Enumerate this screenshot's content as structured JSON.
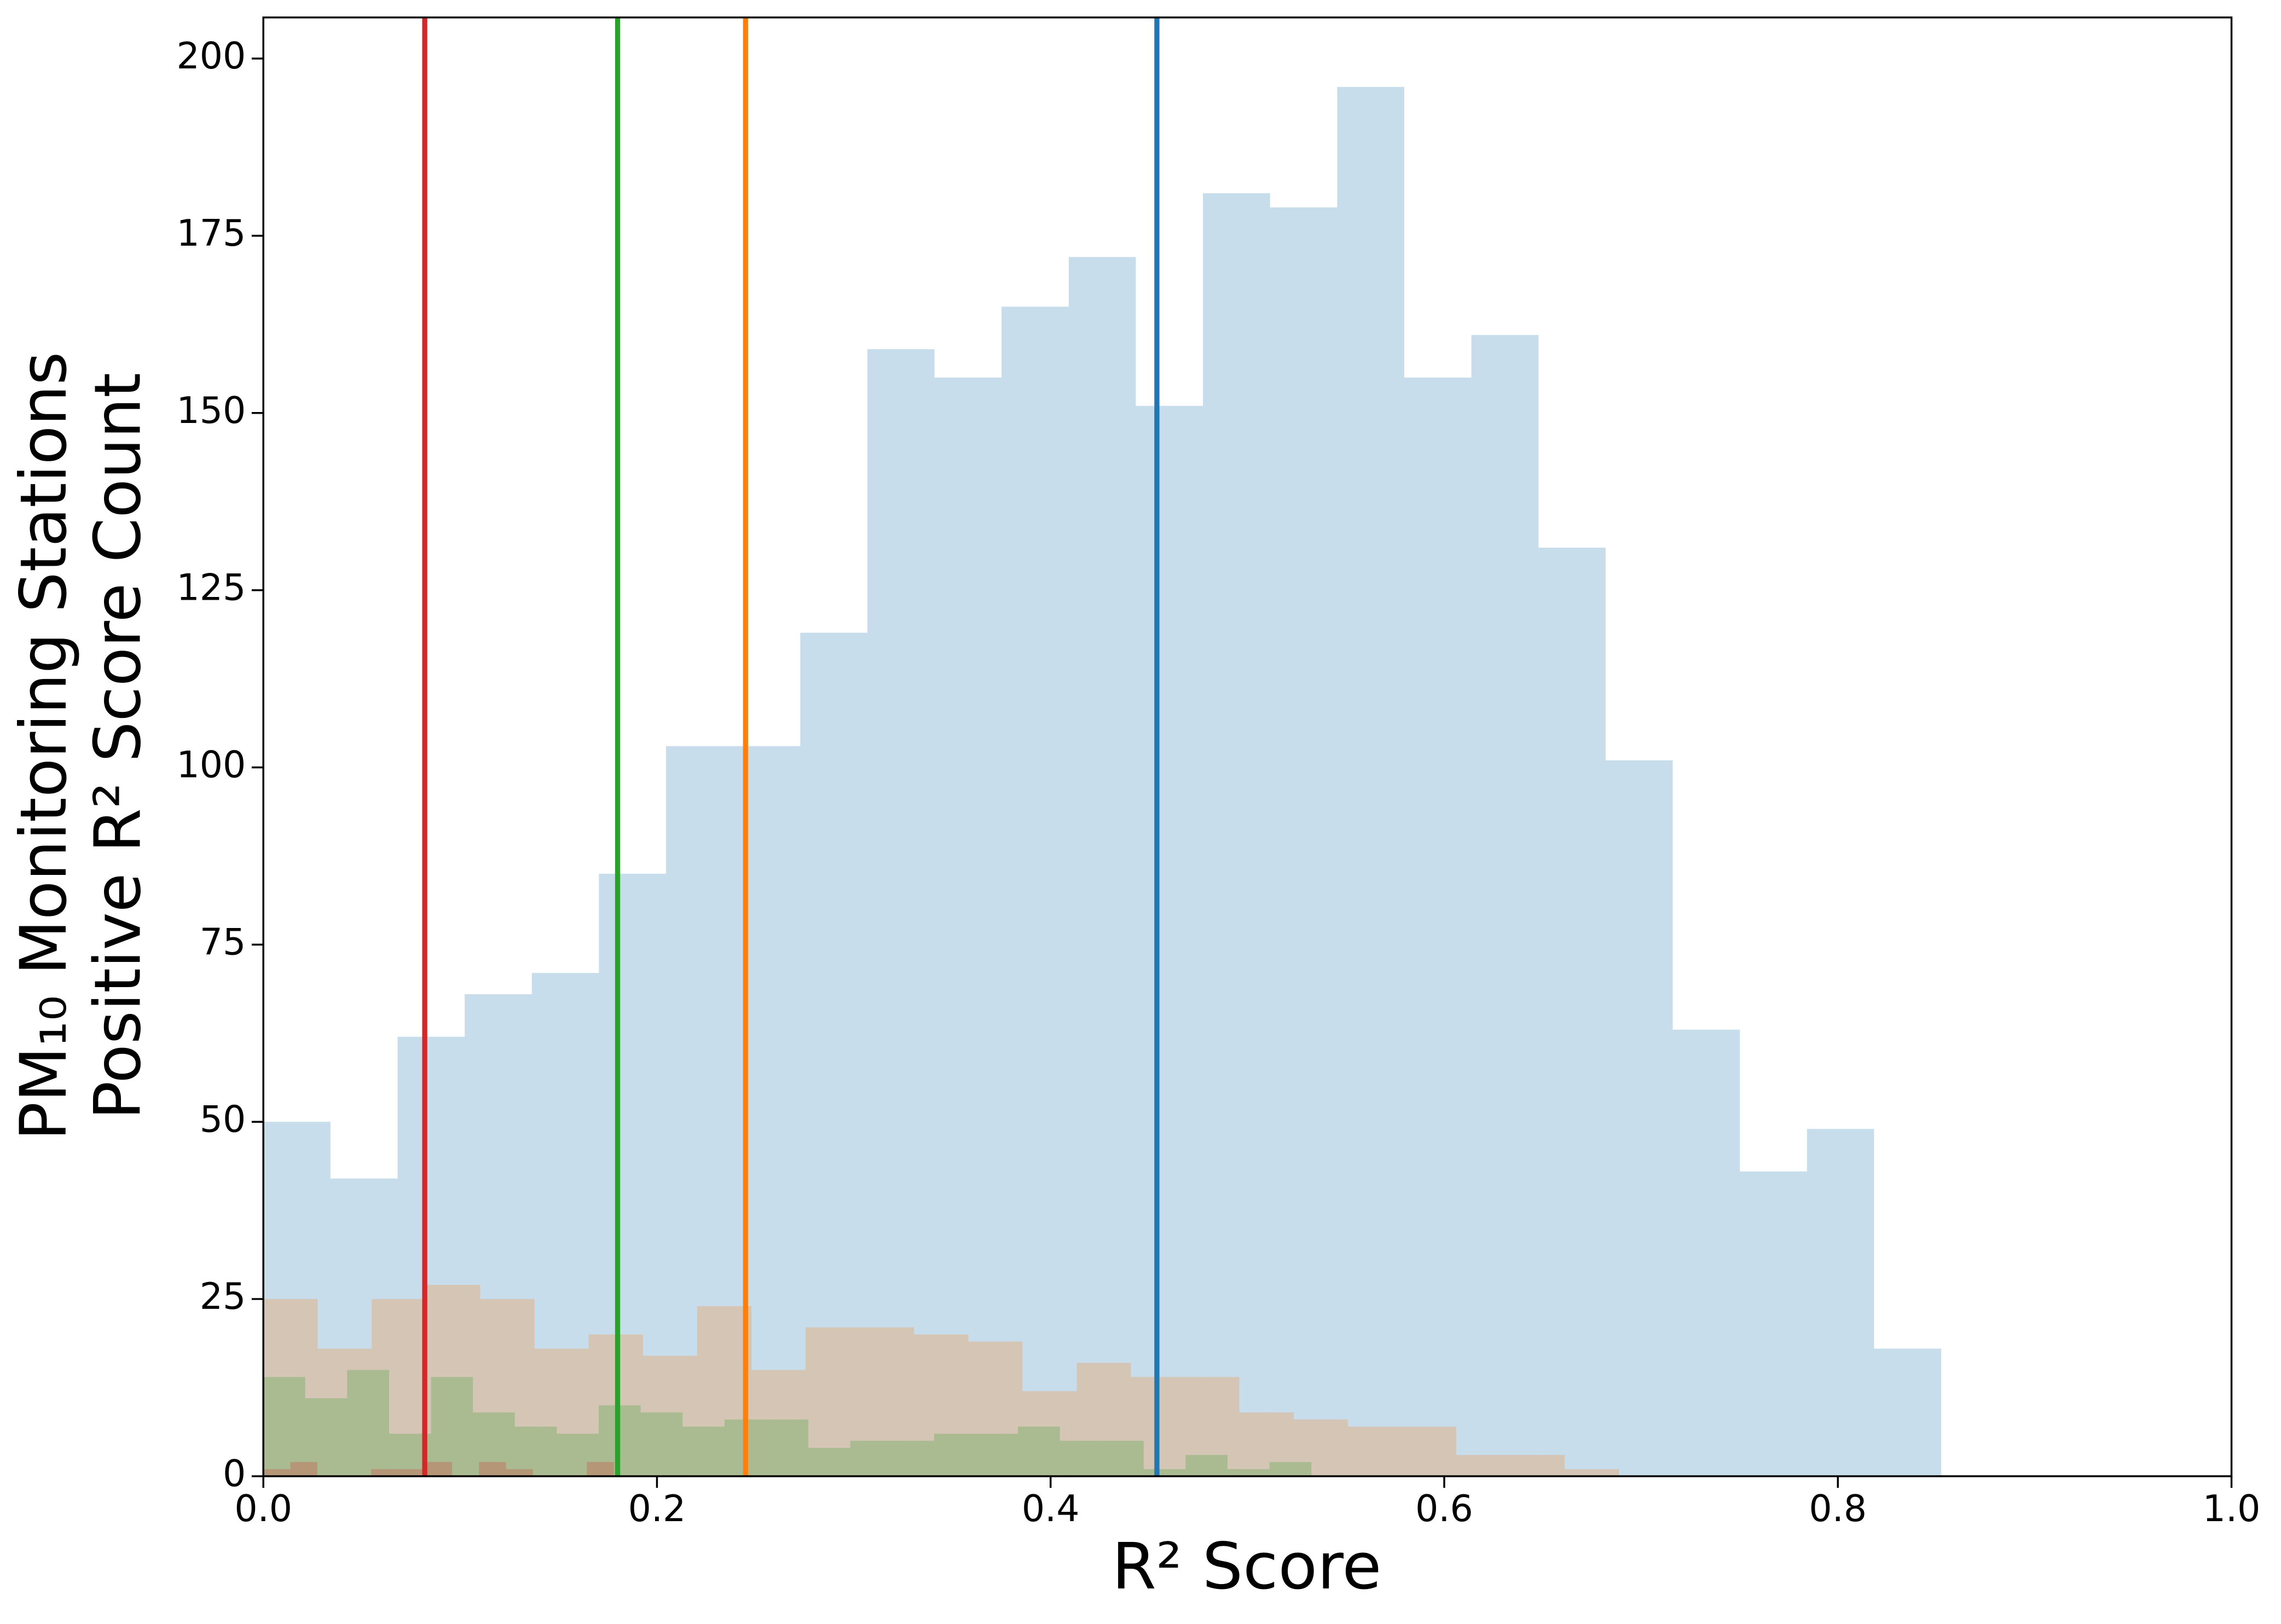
{
  "chart_data": {
    "type": "histogram",
    "xlabel": "R² Score",
    "ylabel": [
      "PM₁₀ Monitoring Stations",
      "Positive R² Score Count"
    ],
    "xlim": [
      0,
      1
    ],
    "ylim": [
      0,
      205.8
    ],
    "xticks": [
      {
        "value": 0,
        "label": "0.0"
      },
      0.2,
      0.4,
      0.6,
      0.8,
      {
        "value": 1,
        "label": "1.0"
      }
    ],
    "yticks": [
      0,
      25,
      50,
      75,
      100,
      125,
      150,
      175,
      200
    ],
    "series": [
      {
        "color": "#1f77b4",
        "opacity": 0.25,
        "bins": [
          0,
          0.0341,
          0.0682,
          0.1023,
          0.1364,
          0.1705,
          0.2046,
          0.2387,
          0.2728,
          0.3069,
          0.341,
          0.3751,
          0.4092,
          0.4433,
          0.4774,
          0.5115,
          0.5456,
          0.5797,
          0.6138,
          0.6479,
          0.682,
          0.7161,
          0.7502,
          0.7843,
          0.8184,
          0.8525
        ],
        "values": [
          50,
          42,
          62,
          68,
          71,
          85,
          103,
          103,
          119,
          159,
          155,
          165,
          172,
          151,
          181,
          179,
          196,
          155,
          161,
          131,
          101,
          63,
          43,
          49,
          18
        ]
      },
      {
        "color": "#ff7f0e",
        "opacity": 0.25,
        "bins": [
          0,
          0.0276,
          0.0551,
          0.0827,
          0.1102,
          0.1378,
          0.1653,
          0.1929,
          0.2204,
          0.248,
          0.2755,
          0.3031,
          0.3306,
          0.3582,
          0.3857,
          0.4133,
          0.4408,
          0.4684,
          0.4959,
          0.5235,
          0.551,
          0.5786,
          0.6061,
          0.6337,
          0.6612,
          0.6888
        ],
        "values": [
          25,
          18,
          25,
          27,
          25,
          18,
          20,
          17,
          24,
          15,
          21,
          21,
          20,
          19,
          12,
          16,
          14,
          14,
          9,
          8,
          7,
          7,
          3,
          3,
          1
        ]
      },
      {
        "color": "#2ca02c",
        "opacity": 0.25,
        "bins": [
          0,
          0.0213,
          0.0426,
          0.0639,
          0.0852,
          0.1065,
          0.1278,
          0.1491,
          0.1704,
          0.1917,
          0.213,
          0.2343,
          0.2556,
          0.2769,
          0.2982,
          0.3195,
          0.3408,
          0.3621,
          0.3834,
          0.4047,
          0.426,
          0.4473,
          0.4686,
          0.4899,
          0.5112,
          0.5325
        ],
        "values": [
          14,
          11,
          15,
          6,
          14,
          9,
          7,
          6,
          10,
          9,
          7,
          8,
          8,
          4,
          5,
          5,
          6,
          6,
          7,
          5,
          5,
          1,
          3,
          1,
          2
        ]
      },
      {
        "color": "#d62728",
        "opacity": 0.25,
        "bins": [
          0,
          0.0137,
          0.0274,
          0.0411,
          0.0548,
          0.0685,
          0.0822,
          0.0959,
          0.1096,
          0.1233,
          0.137,
          0.1507,
          0.1644,
          0.1781
        ],
        "values": [
          1,
          2,
          0,
          0,
          1,
          1,
          2,
          0,
          2,
          1,
          0,
          0,
          2
        ]
      }
    ],
    "vlines": [
      {
        "x": 0.082,
        "color": "#d62728"
      },
      {
        "x": 0.18,
        "color": "#2ca02c"
      },
      {
        "x": 0.245,
        "color": "#ff7f0e"
      },
      {
        "x": 0.454,
        "color": "#1f77b4"
      }
    ]
  }
}
